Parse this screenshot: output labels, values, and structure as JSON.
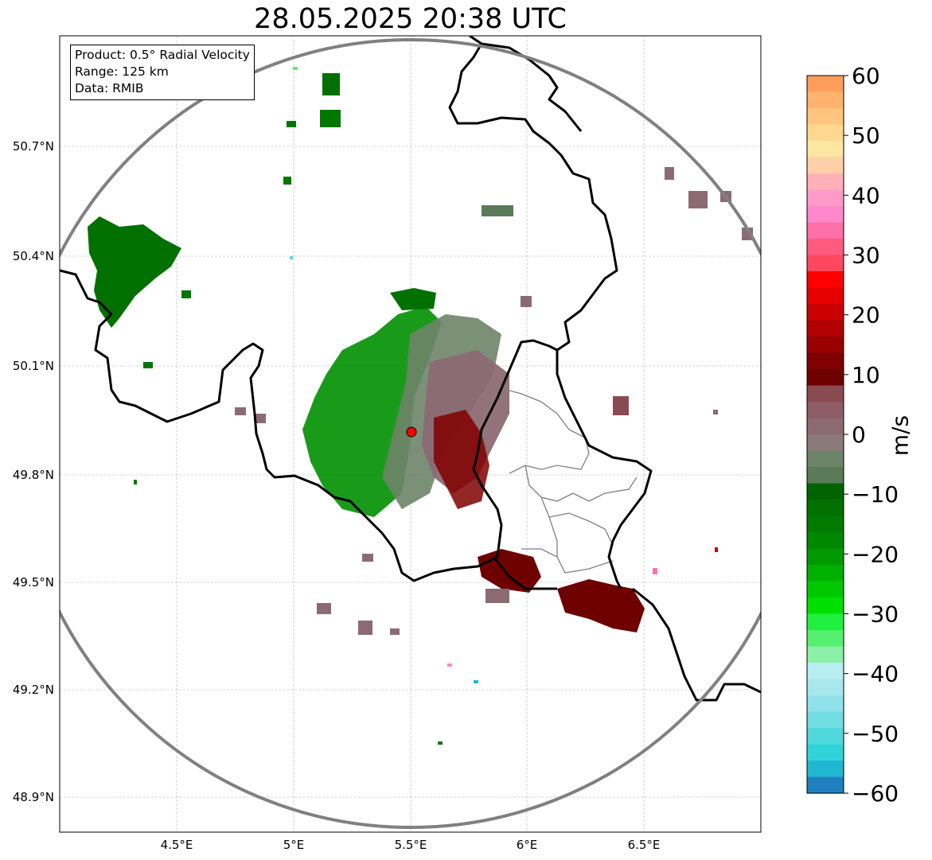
{
  "title": "28.05.2025 20:38 UTC",
  "info": {
    "product": "Product: 0.5° Radial Velocity",
    "range": "Range: 125 km",
    "source": "Data: RMIB"
  },
  "axes": {
    "lon_ticks": [
      "4.5°E",
      "5°E",
      "5.5°E",
      "6°E",
      "6.5°E"
    ],
    "lat_ticks": [
      "50.7°N",
      "50.4°N",
      "50.1°N",
      "49.8°N",
      "49.5°N",
      "49.2°N",
      "48.9°N"
    ]
  },
  "colorbar": {
    "unit": "m/s",
    "min": -60,
    "max": 60,
    "ticks": [
      "60",
      "50",
      "40",
      "30",
      "20",
      "10",
      "0",
      "−10",
      "−20",
      "−30",
      "−40",
      "−50",
      "−60"
    ],
    "colors_top_to_bottom": [
      "#ff9e5a",
      "#ffb36e",
      "#ffc47e",
      "#ffd890",
      "#ffe6a2",
      "#ffd0a8",
      "#ffb0b8",
      "#ff9ac8",
      "#ff88cc",
      "#ff70a8",
      "#ff5a80",
      "#ff4860",
      "#ff0000",
      "#e60000",
      "#cc0000",
      "#b30000",
      "#9a0000",
      "#800000",
      "#6e0000",
      "#8a4a52",
      "#8e5c66",
      "#8c6a74",
      "#8a7a7a",
      "#6e8468",
      "#5a7a58",
      "#006400",
      "#007000",
      "#007a00",
      "#008800",
      "#009a00",
      "#00b000",
      "#00c800",
      "#00e000",
      "#22f040",
      "#55f070",
      "#8cf0a8",
      "#b8eef0",
      "#a8e8ec",
      "#90e2e8",
      "#70dde2",
      "#50d8dc",
      "#30d4d8",
      "#20b8d0",
      "#2080c0"
    ],
    "colors_hex": {
      "approaching_max": "#2080c0",
      "approaching": "#007a00",
      "near_zero": "#8a7a7a",
      "receding": "#800000",
      "receding_max": "#ff9e5a"
    }
  },
  "map_colors": {
    "border": "#000000",
    "range_ring": "#808080",
    "province_lines": "#808080",
    "radar_marker": "#ff0000"
  }
}
